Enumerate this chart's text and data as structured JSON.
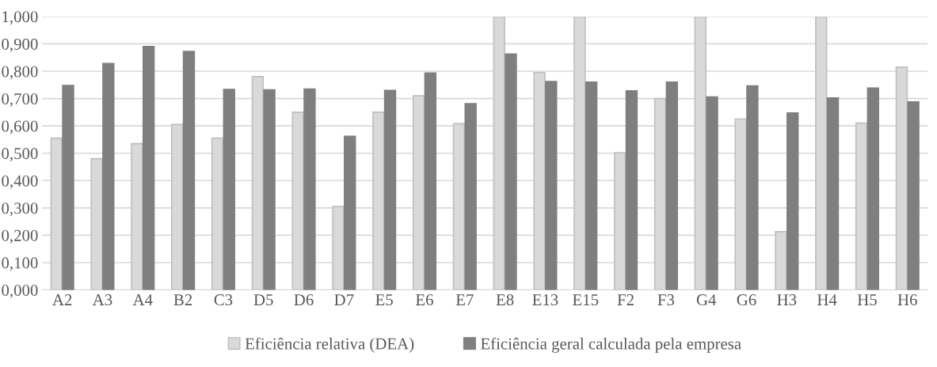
{
  "chart_data": {
    "type": "bar",
    "categories": [
      "A2",
      "A3",
      "A4",
      "B2",
      "C3",
      "D5",
      "D6",
      "D7",
      "E5",
      "E6",
      "E7",
      "E8",
      "E13",
      "E15",
      "F2",
      "F3",
      "G4",
      "G6",
      "H3",
      "H4",
      "H5",
      "H6"
    ],
    "series": [
      {
        "name": "Eficiência relativa (DEA)",
        "color": "#d9d9d9",
        "values": [
          0.555,
          0.48,
          0.535,
          0.605,
          0.555,
          0.78,
          0.65,
          0.305,
          0.65,
          0.71,
          0.608,
          1.0,
          0.795,
          1.0,
          0.502,
          0.7,
          1.0,
          0.625,
          0.213,
          1.0,
          0.61,
          0.815
        ]
      },
      {
        "name": "Eficiência geral calculada pela empresa",
        "color": "#7f7f7f",
        "values": [
          0.748,
          0.828,
          0.89,
          0.872,
          0.733,
          0.732,
          0.735,
          0.562,
          0.73,
          0.793,
          0.681,
          0.863,
          0.762,
          0.76,
          0.728,
          0.76,
          0.706,
          0.746,
          0.647,
          0.702,
          0.738,
          0.688
        ]
      }
    ],
    "ylim": [
      0,
      1
    ],
    "yticks": [
      {
        "value": 0,
        "label": "0,000"
      },
      {
        "value": 0.1,
        "label": "0,100"
      },
      {
        "value": 0.2,
        "label": "0,200"
      },
      {
        "value": 0.3,
        "label": "0,300"
      },
      {
        "value": 0.4,
        "label": "0,400"
      },
      {
        "value": 0.5,
        "label": "0,500"
      },
      {
        "value": 0.6,
        "label": "0,600"
      },
      {
        "value": 0.7,
        "label": "0,700"
      },
      {
        "value": 0.8,
        "label": "0,800"
      },
      {
        "value": 0.9,
        "label": "0,900"
      },
      {
        "value": 1,
        "label": "1,000"
      }
    ],
    "grid": "y",
    "legend": "bottom"
  }
}
